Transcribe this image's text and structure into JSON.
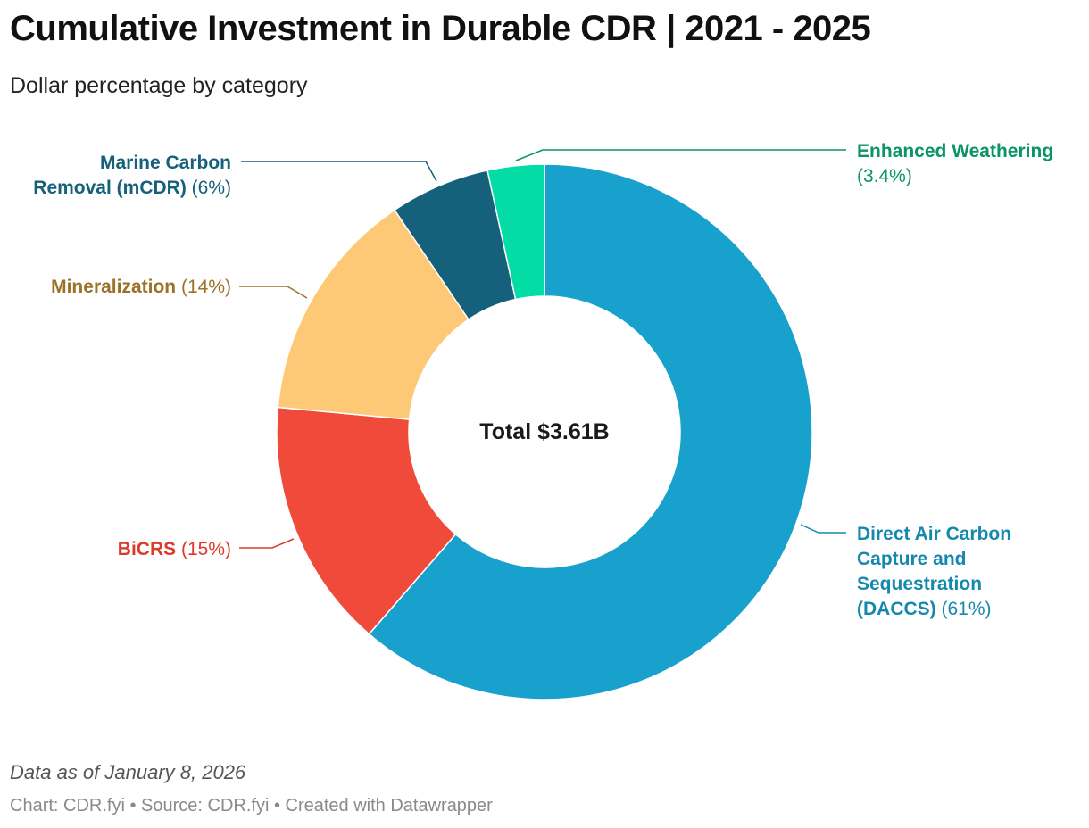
{
  "header": {
    "title": "Cumulative Investment in Durable CDR | 2021 - 2025",
    "subtitle": "Dollar percentage by category"
  },
  "chart_data": {
    "type": "pie",
    "donut": true,
    "center_label": "Total $3.61B",
    "unit": "%",
    "slices": [
      {
        "label": "Direct Air Carbon Capture and Sequestration (DACCS)",
        "value": 61,
        "display": "(61%)",
        "color": "#18a1cd",
        "label_color": "#1588ad",
        "label_lines": [
          "Direct Air Carbon",
          "Capture and",
          "Sequestration",
          "(DACCS)"
        ]
      },
      {
        "label": "BiCRS",
        "value": 15,
        "display": "(15%)",
        "color": "#ef4a3a",
        "label_color": "#dc3b2c",
        "label_lines": [
          "BiCRS"
        ]
      },
      {
        "label": "Mineralization",
        "value": 14,
        "display": "(14%)",
        "color": "#fdc977",
        "label_color": "#9c7228",
        "label_lines": [
          "Mineralization"
        ]
      },
      {
        "label": "Marine Carbon Removal (mCDR)",
        "value": 6,
        "display": "(6%)",
        "color": "#15607a",
        "label_color": "#15607a",
        "label_lines": [
          "Marine Carbon",
          "Removal (mCDR)"
        ]
      },
      {
        "label": "Enhanced Weathering",
        "value": 3.4,
        "display": "(3.4%)",
        "color": "#03dca4",
        "label_color": "#0a9468",
        "label_lines": [
          "Enhanced Weathering"
        ]
      }
    ]
  },
  "footer": {
    "note": "Data as of January 8, 2026",
    "credits": "Chart: CDR.fyi • Source: CDR.fyi • Created with Datawrapper"
  }
}
